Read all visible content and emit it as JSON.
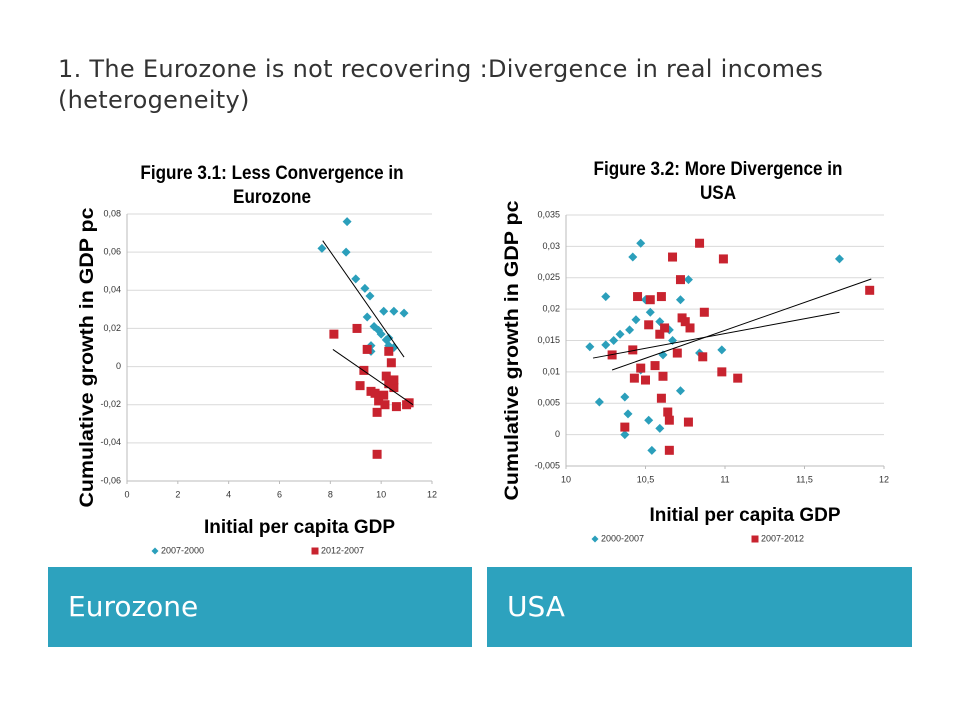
{
  "slide": {
    "title": "1. The Eurozone is not recovering :Divergence in real incomes (heterogeneity)",
    "boxes": [
      "Eurozone",
      "USA"
    ]
  },
  "chart_data": [
    {
      "type": "scatter",
      "title": "Figure 3.1: Less Convergence in Eurozone",
      "xlabel": "Initial per capita GDP",
      "ylabel": "Cumulative  growth in GDP pc",
      "xlim": [
        0,
        12
      ],
      "xticks": [
        0,
        2,
        4,
        6,
        8,
        10,
        12
      ],
      "ylim": [
        -0.06,
        0.08
      ],
      "yticks": [
        {
          "value": -0.06,
          "label": "-0,06"
        },
        {
          "value": -0.04,
          "label": "-0,04"
        },
        {
          "value": -0.02,
          "label": "-0,02"
        },
        0,
        {
          "value": 0.02,
          "label": "0,02"
        },
        {
          "value": 0.04,
          "label": "0,04"
        },
        {
          "value": 0.06,
          "label": "0,06"
        },
        {
          "value": 0.08,
          "label": "0,08"
        }
      ],
      "grid": true,
      "series": [
        {
          "name": "2007-2000",
          "color": "#2b9fbb",
          "marker": "diamond",
          "x": [
            7.67,
            8.66,
            8.62,
            9.0,
            9.36,
            9.56,
            9.45,
            9.72,
            9.9,
            10.1,
            10.5,
            10.9,
            10.0,
            10.2,
            10.3,
            10.5,
            9.6,
            10.3,
            9.6
          ],
          "values": [
            0.062,
            0.076,
            0.06,
            0.046,
            0.041,
            0.037,
            0.026,
            0.021,
            0.019,
            0.029,
            0.029,
            0.028,
            0.017,
            0.014,
            0.011,
            0.01,
            0.008,
            0.015,
            0.011
          ]
        },
        {
          "name": "2012-2007",
          "color": "#c8232f",
          "marker": "square",
          "x": [
            8.14,
            9.05,
            9.45,
            9.32,
            9.17,
            9.6,
            9.76,
            9.9,
            9.84,
            10.1,
            10.2,
            10.3,
            10.4,
            10.3,
            10.5,
            10.6,
            10.15,
            11.0,
            11.1,
            9.84,
            10.5
          ],
          "values": [
            0.017,
            0.02,
            0.009,
            -0.002,
            -0.01,
            -0.013,
            -0.014,
            -0.018,
            -0.024,
            -0.015,
            -0.005,
            0.008,
            0.002,
            -0.009,
            -0.011,
            -0.021,
            -0.02,
            -0.02,
            -0.019,
            -0.046,
            -0.007
          ]
        }
      ],
      "trendlines": [
        {
          "x": [
            7.7,
            10.9
          ],
          "y": [
            0.066,
            0.005
          ]
        },
        {
          "x": [
            8.1,
            11.25
          ],
          "y": [
            0.009,
            -0.02
          ]
        }
      ]
    },
    {
      "type": "scatter",
      "title": "Figure 3.2: More Divergence in USA",
      "xlabel": "Initial per capita GDP",
      "ylabel": "Cumulative growth in GDP pc",
      "xlim": [
        10,
        12
      ],
      "xticks": [
        10,
        {
          "value": 10.5,
          "label": "10,5"
        },
        11,
        {
          "value": 11.5,
          "label": "11,5"
        },
        12
      ],
      "ylim": [
        -0.005,
        0.035
      ],
      "yticks": [
        {
          "value": -0.005,
          "label": "-0,005"
        },
        0,
        {
          "value": 0.005,
          "label": "0,005"
        },
        {
          "value": 0.01,
          "label": "0,01"
        },
        {
          "value": 0.015,
          "label": "0,015"
        },
        {
          "value": 0.02,
          "label": "0,02"
        },
        {
          "value": 0.025,
          "label": "0,025"
        },
        {
          "value": 0.03,
          "label": "0,03"
        },
        {
          "value": 0.035,
          "label": "0,035"
        }
      ],
      "grid": true,
      "series": [
        {
          "name": "2000-2007",
          "color": "#2b9fbb",
          "marker": "diamond",
          "x": [
            10.47,
            10.42,
            10.25,
            10.15,
            10.21,
            10.34,
            10.3,
            10.4,
            10.44,
            10.5,
            10.53,
            10.59,
            10.65,
            10.72,
            10.77,
            10.37,
            10.39,
            10.52,
            10.54,
            10.59,
            10.37,
            10.72,
            10.84,
            10.98,
            11.72,
            10.61,
            10.47,
            10.25,
            10.67
          ],
          "values": [
            0.0305,
            0.0283,
            0.022,
            0.014,
            0.0052,
            0.016,
            0.015,
            0.0167,
            0.0183,
            0.0215,
            0.0195,
            0.018,
            0.0167,
            0.0215,
            0.0247,
            0.006,
            0.0033,
            0.0023,
            -0.0025,
            0.001,
            0.0,
            0.007,
            0.013,
            0.0135,
            0.028,
            0.0127,
            0.0103,
            0.0143,
            0.015
          ]
        },
        {
          "name": "2007-2012",
          "color": "#c8232f",
          "marker": "square",
          "x": [
            10.67,
            10.84,
            10.99,
            11.91,
            10.72,
            10.45,
            10.6,
            10.53,
            10.52,
            10.62,
            10.59,
            10.73,
            10.78,
            10.87,
            10.75,
            10.29,
            10.42,
            10.47,
            10.5,
            10.43,
            10.56,
            10.61,
            10.7,
            10.86,
            10.98,
            11.08,
            10.6,
            10.64,
            10.65,
            10.77,
            10.37,
            10.65
          ],
          "values": [
            0.0283,
            0.0305,
            0.028,
            0.023,
            0.0247,
            0.022,
            0.022,
            0.0215,
            0.0175,
            0.017,
            0.016,
            0.0186,
            0.017,
            0.0195,
            0.018,
            0.0127,
            0.0135,
            0.0106,
            0.0087,
            0.009,
            0.011,
            0.0093,
            0.013,
            0.0124,
            0.01,
            0.009,
            0.0058,
            0.0036,
            0.0023,
            0.002,
            0.0012,
            -0.0025
          ]
        }
      ],
      "trendlines": [
        {
          "x": [
            10.17,
            11.72
          ],
          "y": [
            0.0122,
            0.0195
          ]
        },
        {
          "x": [
            10.29,
            11.92
          ],
          "y": [
            0.0103,
            0.0248
          ]
        }
      ]
    }
  ]
}
